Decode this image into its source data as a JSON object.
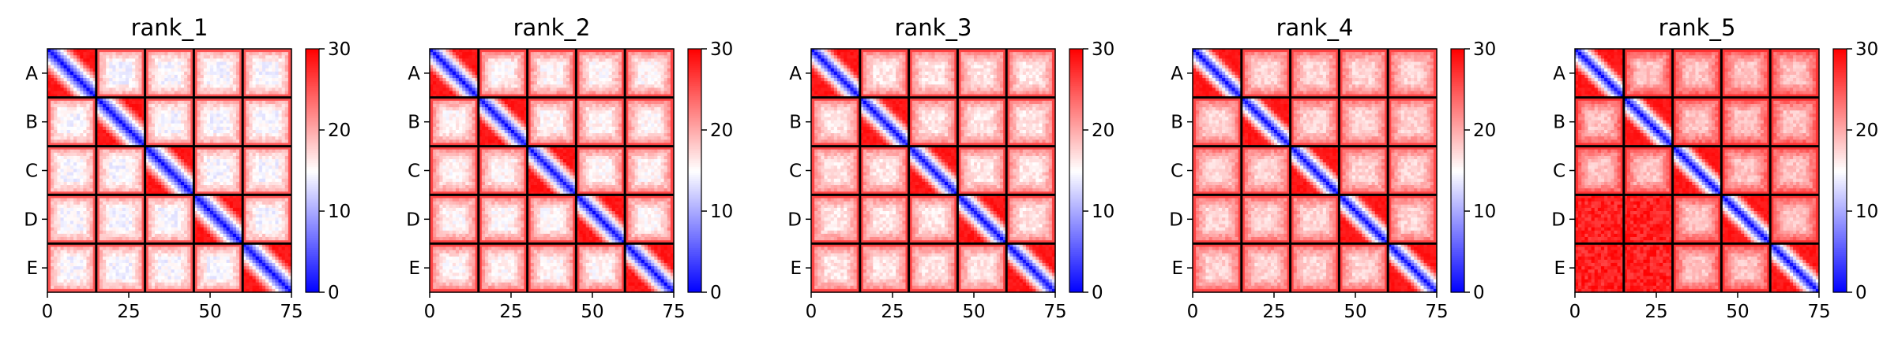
{
  "chart_data": [
    {
      "type": "heatmap",
      "title": "rank_1",
      "x_ticks": [
        0,
        25,
        50,
        75
      ],
      "y_ticks": [
        "A",
        "B",
        "C",
        "D",
        "E"
      ],
      "matrix_size": 75,
      "block_size": 15,
      "blocks": 5,
      "colorbar": {
        "min": 0,
        "max": 30,
        "ticks": [
          0,
          10,
          20,
          30
        ],
        "colormap": "bwr"
      },
      "offdiag_level": 19,
      "inner_level": 13,
      "corner_level": 28,
      "diag_width": 4.0
    },
    {
      "type": "heatmap",
      "title": "rank_2",
      "x_ticks": [
        0,
        25,
        50,
        75
      ],
      "y_ticks": [
        "A",
        "B",
        "C",
        "D",
        "E"
      ],
      "matrix_size": 75,
      "block_size": 15,
      "blocks": 5,
      "colorbar": {
        "min": 0,
        "max": 30,
        "ticks": [
          0,
          10,
          20,
          30
        ],
        "colormap": "bwr"
      },
      "offdiag_level": 21,
      "inner_level": 14,
      "corner_level": 29,
      "diag_width": 4.5
    },
    {
      "type": "heatmap",
      "title": "rank_3",
      "x_ticks": [
        0,
        25,
        50,
        75
      ],
      "y_ticks": [
        "A",
        "B",
        "C",
        "D",
        "E"
      ],
      "matrix_size": 75,
      "block_size": 15,
      "blocks": 5,
      "colorbar": {
        "min": 0,
        "max": 30,
        "ticks": [
          0,
          10,
          20,
          30
        ],
        "colormap": "bwr"
      },
      "offdiag_level": 21,
      "inner_level": 15,
      "corner_level": 29,
      "diag_width": 4.8
    },
    {
      "type": "heatmap",
      "title": "rank_4",
      "x_ticks": [
        0,
        25,
        50,
        75
      ],
      "y_ticks": [
        "A",
        "B",
        "C",
        "D",
        "E"
      ],
      "matrix_size": 75,
      "block_size": 15,
      "blocks": 5,
      "colorbar": {
        "min": 0,
        "max": 30,
        "ticks": [
          0,
          10,
          20,
          30
        ],
        "colormap": "bwr"
      },
      "offdiag_level": 22,
      "inner_level": 16,
      "corner_level": 29,
      "diag_width": 5.0
    },
    {
      "type": "heatmap",
      "title": "rank_5",
      "x_ticks": [
        0,
        25,
        50,
        75
      ],
      "y_ticks": [
        "A",
        "B",
        "C",
        "D",
        "E"
      ],
      "matrix_size": 75,
      "block_size": 15,
      "blocks": 5,
      "colorbar": {
        "min": 0,
        "max": 30,
        "ticks": [
          0,
          10,
          20,
          30
        ],
        "colormap": "bwr"
      },
      "offdiag_level": 24,
      "inner_level": 17,
      "corner_level": 30,
      "diag_width": 5.0
    }
  ]
}
